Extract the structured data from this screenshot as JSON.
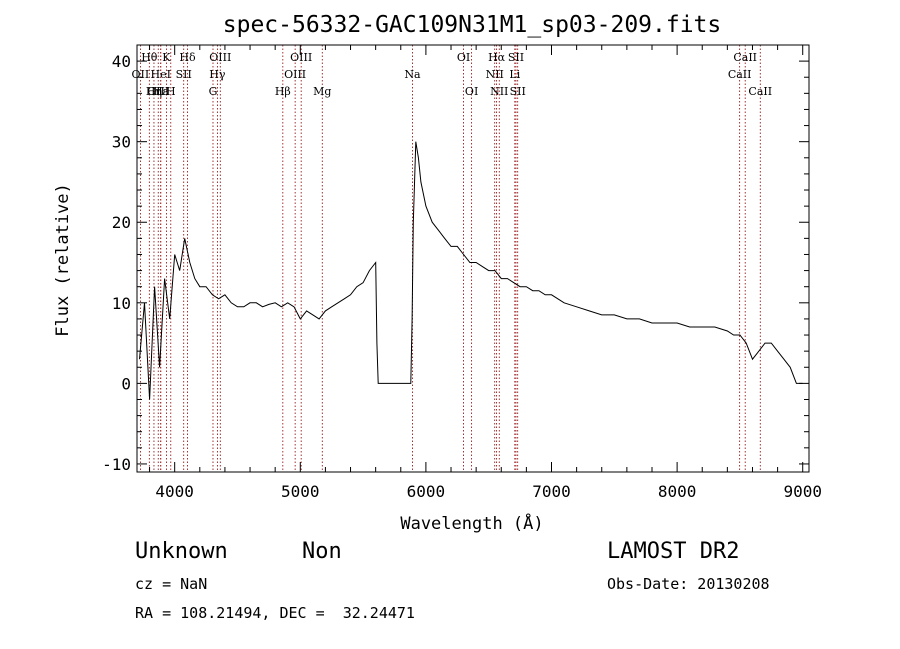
{
  "chart_data": {
    "type": "line",
    "title": "spec-56332-GAC109N31M1_sp03-209.fits",
    "xlabel": "Wavelength (Å)",
    "ylabel": "Flux (relative)",
    "xlim": [
      3700,
      9050
    ],
    "ylim": [
      -11,
      42
    ],
    "xticks": [
      4000,
      5000,
      6000,
      7000,
      8000,
      9000
    ],
    "yticks": [
      -10,
      0,
      10,
      20,
      30,
      40
    ],
    "grid": false,
    "line_color": "#000000",
    "marker_color": "#8b0000",
    "series": [
      {
        "x": [
          3720,
          3760,
          3800,
          3840,
          3880,
          3920,
          3960,
          4000,
          4040,
          4080,
          4120,
          4160,
          4200,
          4250,
          4300,
          4350,
          4400,
          4450,
          4500,
          4550,
          4600,
          4650,
          4700,
          4750,
          4800,
          4850,
          4900,
          4950,
          5000,
          5050,
          5100,
          5150,
          5200,
          5250,
          5300,
          5350,
          5400,
          5450,
          5500,
          5550,
          5600,
          5610,
          5620,
          5700,
          5800,
          5880,
          5890,
          5900,
          5920,
          5940,
          5960,
          6000,
          6050,
          6100,
          6150,
          6200,
          6250,
          6300,
          6350,
          6400,
          6450,
          6500,
          6550,
          6600,
          6650,
          6700,
          6750,
          6800,
          6850,
          6900,
          6950,
          7000,
          7100,
          7200,
          7300,
          7400,
          7500,
          7600,
          7700,
          7800,
          7900,
          8000,
          8100,
          8200,
          8300,
          8400,
          8450,
          8500,
          8550,
          8600,
          8650,
          8700,
          8750,
          8800,
          8850,
          8900,
          8950,
          9000
        ],
        "y": [
          3,
          10,
          -2,
          12,
          2,
          13,
          8,
          16,
          14,
          18,
          15,
          13,
          12,
          12,
          11,
          10.5,
          11,
          10,
          9.5,
          9.5,
          10,
          10,
          9.5,
          9.8,
          10,
          9.5,
          10,
          9.5,
          8,
          9,
          8.5,
          8,
          9,
          9.5,
          10,
          10.5,
          11,
          12,
          12.5,
          14,
          15,
          5,
          0,
          0,
          0,
          0,
          8,
          20,
          30,
          28,
          25,
          22,
          20,
          19,
          18,
          17,
          17,
          16,
          15,
          15,
          14.5,
          14,
          14,
          13,
          13,
          12.5,
          12,
          12,
          11.5,
          11.5,
          11,
          11,
          10,
          9.5,
          9,
          8.5,
          8.5,
          8,
          8,
          7.5,
          7.5,
          7.5,
          7,
          7,
          7,
          6.5,
          6,
          6,
          5,
          3,
          4,
          5,
          5,
          4,
          3,
          2,
          0,
          0
        ]
      }
    ],
    "lines": [
      {
        "label": "Hθ",
        "wavelength": 3798,
        "row": 1
      },
      {
        "label": "OII",
        "wavelength": 3727,
        "row": 2
      },
      {
        "label": "OIII",
        "wavelength": 3869,
        "row": 3
      },
      {
        "label": "Hε",
        "wavelength": 3889,
        "row": 3
      },
      {
        "label": "Hη",
        "wavelength": 3835,
        "row": 3
      },
      {
        "label": "HeI",
        "wavelength": 3889,
        "row": 2
      },
      {
        "label": "K",
        "wavelength": 3934,
        "row": 1
      },
      {
        "label": "H",
        "wavelength": 3969,
        "row": 3
      },
      {
        "label": "SII",
        "wavelength": 4072,
        "row": 2
      },
      {
        "label": "Hδ",
        "wavelength": 4102,
        "row": 1
      },
      {
        "label": "OIII",
        "wavelength": 4363,
        "row": 1
      },
      {
        "label": "Hγ",
        "wavelength": 4340,
        "row": 2
      },
      {
        "label": "G",
        "wavelength": 4305,
        "row": 3
      },
      {
        "label": "Hβ",
        "wavelength": 4861,
        "row": 3
      },
      {
        "label": "OIII",
        "wavelength": 5007,
        "row": 1
      },
      {
        "label": "OIII",
        "wavelength": 4959,
        "row": 2
      },
      {
        "label": "Mg",
        "wavelength": 5175,
        "row": 3
      },
      {
        "label": "Na",
        "wavelength": 5893,
        "row": 2
      },
      {
        "label": "OI",
        "wavelength": 6300,
        "row": 1
      },
      {
        "label": "OI",
        "wavelength": 6364,
        "row": 3
      },
      {
        "label": "Hα",
        "wavelength": 6563,
        "row": 1
      },
      {
        "label": "NII",
        "wavelength": 6548,
        "row": 2
      },
      {
        "label": "NII",
        "wavelength": 6584,
        "row": 3
      },
      {
        "label": "SII",
        "wavelength": 6717,
        "row": 1
      },
      {
        "label": "Li",
        "wavelength": 6708,
        "row": 2
      },
      {
        "label": "SII",
        "wavelength": 6731,
        "row": 3
      },
      {
        "label": "CaII",
        "wavelength": 8542,
        "row": 1
      },
      {
        "label": "CaII",
        "wavelength": 8498,
        "row": 2
      },
      {
        "label": "CaII",
        "wavelength": 8662,
        "row": 3
      }
    ]
  },
  "info": {
    "class": "Unknown",
    "subclass": "Non",
    "survey": "LAMOST DR2",
    "cz": "cz = NaN",
    "obs_date": "Obs-Date: 20130208",
    "coords": "RA = 108.21494, DEC =  32.24471"
  }
}
